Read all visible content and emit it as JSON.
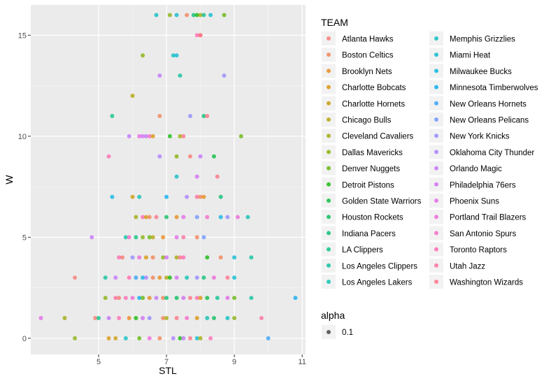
{
  "chart_data": {
    "type": "scatter",
    "xlabel": "STL",
    "ylabel": "W",
    "xlim": [
      3.0,
      11.1
    ],
    "ylim": [
      -0.8,
      16.5
    ],
    "x_ticks": [
      5,
      7,
      9,
      11
    ],
    "y_ticks": [
      0,
      5,
      10,
      15
    ],
    "x_tick_labels": [
      "5",
      "7",
      "9",
      "11"
    ],
    "y_tick_labels": [
      "0",
      "5",
      "10",
      "15"
    ],
    "grid": true,
    "legend_placement": "right",
    "legend_title": "TEAM",
    "alpha_legend": {
      "title": "alpha",
      "label": "0.1"
    },
    "teams": [
      {
        "name": "Atlanta Hawks",
        "color": "#F8766D"
      },
      {
        "name": "Boston Celtics",
        "color": "#F17E4F"
      },
      {
        "name": "Brooklyn Nets",
        "color": "#E68613"
      },
      {
        "name": "Charlotte Bobcats",
        "color": "#D89000"
      },
      {
        "name": "Charlotte Hornets",
        "color": "#C79800"
      },
      {
        "name": "Chicago Bulls",
        "color": "#B3A000"
      },
      {
        "name": "Cleveland Cavaliers",
        "color": "#9DA700"
      },
      {
        "name": "Dallas Mavericks",
        "color": "#83AD00"
      },
      {
        "name": "Denver Nuggets",
        "color": "#5EB300"
      },
      {
        "name": "Detroit Pistons",
        "color": "#0BB702"
      },
      {
        "name": "Golden State Warriors",
        "color": "#00BA38"
      },
      {
        "name": "Houston Rockets",
        "color": "#00BC59"
      },
      {
        "name": "Indiana Pacers",
        "color": "#00BE71"
      },
      {
        "name": "LA Clippers",
        "color": "#00C087"
      },
      {
        "name": "Los Angeles Clippers",
        "color": "#00C09B"
      },
      {
        "name": "Los Angeles Lakers",
        "color": "#00BFAE"
      },
      {
        "name": "Memphis Grizzlies",
        "color": "#00BCC0"
      },
      {
        "name": "Miami Heat",
        "color": "#00B8D1"
      },
      {
        "name": "Milwaukee Bucks",
        "color": "#00B1E0"
      },
      {
        "name": "Minnesota Timberwolves",
        "color": "#00A8EE"
      },
      {
        "name": "New Orleans Hornets",
        "color": "#2B9DF9"
      },
      {
        "name": "New Orleans Pelicans",
        "color": "#6991FF"
      },
      {
        "name": "New York Knicks",
        "color": "#8D85FF"
      },
      {
        "name": "Oklahoma City Thunder",
        "color": "#A879FF"
      },
      {
        "name": "Orlando Magic",
        "color": "#BF6FFA"
      },
      {
        "name": "Philadelphia 76ers",
        "color": "#D267F2"
      },
      {
        "name": "Phoenix Suns",
        "color": "#E163E7"
      },
      {
        "name": "Portland Trail Blazers",
        "color": "#EE61D7"
      },
      {
        "name": "San Antonio Spurs",
        "color": "#F863C5"
      },
      {
        "name": "Toronto Raptors",
        "color": "#FF64B0"
      },
      {
        "name": "Utah Jazz",
        "color": "#FF6899"
      },
      {
        "name": "Washington Wizards",
        "color": "#FF6C80"
      }
    ],
    "points": [
      [
        6.7,
        16,
        16
      ],
      [
        7.1,
        16,
        7
      ],
      [
        7.3,
        16,
        17
      ],
      [
        7.6,
        16,
        1
      ],
      [
        7.8,
        16,
        12
      ],
      [
        7.9,
        16,
        9
      ],
      [
        8.0,
        16,
        6
      ],
      [
        8.1,
        16,
        13
      ],
      [
        8.3,
        16,
        17
      ],
      [
        8.7,
        16,
        8
      ],
      [
        8.0,
        15,
        0
      ],
      [
        7.9,
        15,
        29
      ],
      [
        8.0,
        15,
        31
      ],
      [
        6.3,
        14,
        7
      ],
      [
        7.2,
        14,
        16
      ],
      [
        7.3,
        14,
        17
      ],
      [
        6.8,
        13,
        24
      ],
      [
        7.4,
        13,
        14
      ],
      [
        8.7,
        13,
        22
      ],
      [
        6.0,
        12,
        5
      ],
      [
        5.4,
        11,
        13
      ],
      [
        6.8,
        11,
        1
      ],
      [
        7.7,
        11,
        22
      ],
      [
        8.1,
        11,
        12
      ],
      [
        8.2,
        11,
        31
      ],
      [
        5.9,
        10,
        24
      ],
      [
        6.2,
        10,
        26
      ],
      [
        6.3,
        10,
        25
      ],
      [
        6.4,
        10,
        24
      ],
      [
        6.5,
        10,
        28
      ],
      [
        6.6,
        10,
        3
      ],
      [
        7.1,
        10,
        9
      ],
      [
        7.4,
        10,
        6
      ],
      [
        7.5,
        10,
        31
      ],
      [
        9.2,
        10,
        8
      ],
      [
        5.3,
        9,
        29
      ],
      [
        6.8,
        9,
        23
      ],
      [
        7.3,
        9,
        7
      ],
      [
        7.7,
        9,
        0
      ],
      [
        8.0,
        9,
        24
      ],
      [
        8.4,
        9,
        10
      ],
      [
        7.3,
        8,
        16
      ],
      [
        7.9,
        8,
        25
      ],
      [
        8.5,
        8,
        31
      ],
      [
        5.4,
        7,
        18
      ],
      [
        6.0,
        7,
        4
      ],
      [
        6.2,
        7,
        15
      ],
      [
        7.0,
        7,
        19
      ],
      [
        7.6,
        7,
        23
      ],
      [
        7.9,
        7,
        30
      ],
      [
        8.0,
        7,
        1
      ],
      [
        8.1,
        7,
        2
      ],
      [
        8.6,
        7,
        12
      ],
      [
        6.1,
        6,
        6
      ],
      [
        6.3,
        6,
        29
      ],
      [
        6.4,
        6,
        3
      ],
      [
        6.5,
        6,
        1
      ],
      [
        6.7,
        6,
        31
      ],
      [
        7.0,
        6,
        11
      ],
      [
        7.3,
        6,
        2
      ],
      [
        7.5,
        6,
        26
      ],
      [
        7.9,
        6,
        21
      ],
      [
        8.2,
        6,
        28
      ],
      [
        8.6,
        6,
        18
      ],
      [
        8.8,
        6,
        22
      ],
      [
        9.1,
        6,
        27
      ],
      [
        9.4,
        6,
        15
      ],
      [
        4.8,
        5,
        24
      ],
      [
        5.8,
        5,
        14
      ],
      [
        5.9,
        5,
        28
      ],
      [
        6.1,
        5,
        12
      ],
      [
        6.3,
        5,
        7
      ],
      [
        6.5,
        5,
        8
      ],
      [
        6.6,
        5,
        5
      ],
      [
        6.9,
        5,
        2
      ],
      [
        7.3,
        5,
        26
      ],
      [
        7.5,
        5,
        30
      ],
      [
        7.9,
        5,
        1
      ],
      [
        8.1,
        5,
        21
      ],
      [
        5.6,
        4,
        29
      ],
      [
        5.7,
        4,
        0
      ],
      [
        6.0,
        4,
        22
      ],
      [
        6.2,
        4,
        27
      ],
      [
        6.4,
        4,
        3
      ],
      [
        6.6,
        4,
        1
      ],
      [
        6.9,
        4,
        7
      ],
      [
        7.0,
        4,
        25
      ],
      [
        7.3,
        4,
        6
      ],
      [
        7.4,
        4,
        31
      ],
      [
        7.5,
        4,
        29
      ],
      [
        8.2,
        4,
        9
      ],
      [
        8.6,
        4,
        1
      ],
      [
        9.0,
        4,
        17
      ],
      [
        9.5,
        4,
        14
      ],
      [
        4.3,
        3,
        0
      ],
      [
        5.2,
        3,
        14
      ],
      [
        5.5,
        3,
        24
      ],
      [
        5.9,
        3,
        29
      ],
      [
        6.1,
        3,
        20
      ],
      [
        6.3,
        3,
        18
      ],
      [
        6.4,
        3,
        23
      ],
      [
        6.6,
        3,
        1
      ],
      [
        6.8,
        3,
        2
      ],
      [
        7.0,
        3,
        5
      ],
      [
        7.1,
        3,
        9
      ],
      [
        7.3,
        3,
        25
      ],
      [
        7.6,
        3,
        15
      ],
      [
        7.9,
        3,
        22
      ],
      [
        8.1,
        3,
        12
      ],
      [
        8.4,
        3,
        27
      ],
      [
        8.8,
        3,
        31
      ],
      [
        9.0,
        3,
        17
      ],
      [
        5.2,
        2,
        7
      ],
      [
        5.5,
        2,
        30
      ],
      [
        5.6,
        2,
        0
      ],
      [
        5.8,
        2,
        29
      ],
      [
        6.0,
        2,
        27
      ],
      [
        6.2,
        2,
        19
      ],
      [
        6.3,
        2,
        8
      ],
      [
        6.5,
        2,
        2
      ],
      [
        6.7,
        2,
        24
      ],
      [
        6.9,
        2,
        1
      ],
      [
        7.0,
        2,
        12
      ],
      [
        7.3,
        2,
        11
      ],
      [
        7.5,
        2,
        25
      ],
      [
        7.7,
        2,
        31
      ],
      [
        7.9,
        2,
        29
      ],
      [
        8.0,
        2,
        3
      ],
      [
        8.2,
        2,
        10
      ],
      [
        8.5,
        2,
        13
      ],
      [
        8.8,
        2,
        26
      ],
      [
        9.0,
        2,
        8
      ],
      [
        9.5,
        2,
        14
      ],
      [
        10.8,
        2,
        19
      ],
      [
        3.3,
        1,
        26
      ],
      [
        4.0,
        1,
        6
      ],
      [
        4.9,
        1,
        0
      ],
      [
        5.0,
        1,
        13
      ],
      [
        5.3,
        1,
        24
      ],
      [
        5.6,
        1,
        29
      ],
      [
        5.9,
        1,
        2
      ],
      [
        6.1,
        1,
        9
      ],
      [
        6.3,
        1,
        25
      ],
      [
        6.5,
        1,
        22
      ],
      [
        6.9,
        1,
        1
      ],
      [
        7.0,
        1,
        6
      ],
      [
        7.3,
        1,
        31
      ],
      [
        7.6,
        1,
        28
      ],
      [
        7.9,
        1,
        3
      ],
      [
        8.2,
        1,
        15
      ],
      [
        8.4,
        1,
        11
      ],
      [
        8.8,
        1,
        16
      ],
      [
        9.0,
        1,
        7
      ],
      [
        9.8,
        1,
        30
      ],
      [
        4.3,
        0,
        7
      ],
      [
        5.3,
        0,
        3
      ],
      [
        5.5,
        0,
        4
      ],
      [
        5.8,
        0,
        16
      ],
      [
        6.2,
        0,
        8
      ],
      [
        6.5,
        0,
        27
      ],
      [
        6.8,
        0,
        1
      ],
      [
        7.2,
        0,
        23
      ],
      [
        7.4,
        0,
        9
      ],
      [
        7.5,
        0,
        24
      ],
      [
        7.7,
        0,
        31
      ],
      [
        7.9,
        0,
        17
      ],
      [
        8.0,
        0,
        6
      ],
      [
        8.3,
        0,
        29
      ],
      [
        10.0,
        0,
        20
      ]
    ]
  }
}
